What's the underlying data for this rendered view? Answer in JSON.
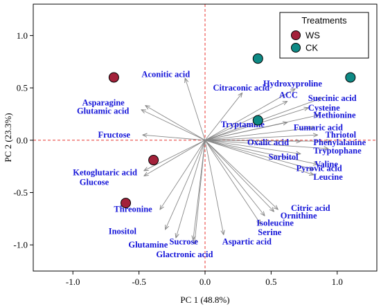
{
  "chart_data": {
    "type": "scatter",
    "subtype": "pca-biplot",
    "xlabel": "PC 1 (48.8%)",
    "ylabel": "PC 2 (23.3%)",
    "xlim": [
      -1.3,
      1.3
    ],
    "ylim": [
      -1.25,
      1.3
    ],
    "xticks": [
      -1.0,
      -0.5,
      0.0,
      0.5,
      1.0
    ],
    "xtick_labels": [
      "-1.0",
      "-0.5",
      "0.0",
      "0.5",
      "1.0"
    ],
    "yticks": [
      -1.0,
      -0.5,
      0.0,
      0.5,
      1.0
    ],
    "ytick_labels": [
      "-1.0",
      "-0.5",
      "0.0",
      "0.5",
      "1.0"
    ],
    "grid": false,
    "reference_lines": "dashed red lines at x=0 and y=0",
    "legend": {
      "title": "Treatments",
      "position": "top-right",
      "items": [
        {
          "label": "WS",
          "color": "#a3213a"
        },
        {
          "label": "CK",
          "color": "#0e8a85"
        }
      ]
    },
    "series": [
      {
        "name": "WS",
        "color": "#a3213a",
        "points": [
          {
            "x": -0.69,
            "y": 0.6
          },
          {
            "x": -0.39,
            "y": -0.19
          },
          {
            "x": -0.6,
            "y": -0.6
          }
        ]
      },
      {
        "name": "CK",
        "color": "#0e8a85",
        "points": [
          {
            "x": 0.4,
            "y": 0.78
          },
          {
            "x": 1.1,
            "y": 0.6
          },
          {
            "x": 0.4,
            "y": 0.19
          }
        ]
      }
    ],
    "loadings": [
      {
        "name": "Aconitic acid",
        "x": -0.15,
        "y": 0.59,
        "lx": -0.48,
        "ly": 0.63
      },
      {
        "name": "Asparagine",
        "x": -0.45,
        "y": 0.33,
        "lx": -0.93,
        "ly": 0.36
      },
      {
        "name": "Glutamic acid",
        "x": -0.48,
        "y": 0.29,
        "lx": -0.97,
        "ly": 0.28
      },
      {
        "name": "Fructose",
        "x": -0.47,
        "y": 0.05,
        "lx": -0.81,
        "ly": 0.05
      },
      {
        "name": "Ketoglutaric acid",
        "x": -0.46,
        "y": -0.29,
        "lx": -1.0,
        "ly": -0.31
      },
      {
        "name": "Glucose",
        "x": -0.46,
        "y": -0.34,
        "lx": -0.95,
        "ly": -0.4
      },
      {
        "name": "Threonine",
        "x": -0.34,
        "y": -0.66,
        "lx": -0.69,
        "ly": -0.66
      },
      {
        "name": "Inositol",
        "x": -0.3,
        "y": -0.85,
        "lx": -0.73,
        "ly": -0.87
      },
      {
        "name": "Glutamine",
        "x": -0.22,
        "y": -0.93,
        "lx": -0.58,
        "ly": -1.0
      },
      {
        "name": "Sucrose",
        "x": -0.09,
        "y": -0.95,
        "lx": -0.27,
        "ly": -0.97
      },
      {
        "name": "Glactronic acid",
        "x": -0.08,
        "y": -0.99,
        "lx": -0.37,
        "ly": -1.09
      },
      {
        "name": "Aspartic acid",
        "x": 0.14,
        "y": -0.9,
        "lx": 0.13,
        "ly": -0.97
      },
      {
        "name": "Serine",
        "x": 0.42,
        "y": -0.8,
        "lx": 0.4,
        "ly": -0.88
      },
      {
        "name": "Isoleucine",
        "x": 0.45,
        "y": -0.72,
        "lx": 0.39,
        "ly": -0.79
      },
      {
        "name": "Ornithine",
        "x": 0.52,
        "y": -0.68,
        "lx": 0.57,
        "ly": -0.72
      },
      {
        "name": "Citric acid",
        "x": 0.55,
        "y": -0.66,
        "lx": 0.65,
        "ly": -0.65
      },
      {
        "name": "Leucine",
        "x": 0.82,
        "y": -0.33,
        "lx": 0.82,
        "ly": -0.35
      },
      {
        "name": "Pyrovic acid",
        "x": 0.82,
        "y": -0.28,
        "lx": 0.69,
        "ly": -0.27
      },
      {
        "name": "Valine",
        "x": 0.85,
        "y": -0.23,
        "lx": 0.83,
        "ly": -0.23
      },
      {
        "name": "Sorbitol",
        "x": 0.72,
        "y": -0.13,
        "lx": 0.48,
        "ly": -0.16
      },
      {
        "name": "Tryptophane",
        "x": 0.93,
        "y": -0.08,
        "lx": 0.82,
        "ly": -0.1
      },
      {
        "name": "Oxalic acid",
        "x": 0.72,
        "y": -0.01,
        "lx": 0.32,
        "ly": -0.02
      },
      {
        "name": "Phenylalanine",
        "x": 0.95,
        "y": -0.01,
        "lx": 0.82,
        "ly": -0.02
      },
      {
        "name": "Thriotol",
        "x": 0.85,
        "y": 0.05,
        "lx": 0.91,
        "ly": 0.05
      },
      {
        "name": "Fumaric acid",
        "x": 0.82,
        "y": 0.12,
        "lx": 0.67,
        "ly": 0.12
      },
      {
        "name": "Tryptamine",
        "x": 0.62,
        "y": 0.17,
        "lx": 0.12,
        "ly": 0.15
      },
      {
        "name": "Methionine",
        "x": 0.86,
        "y": 0.24,
        "lx": 0.82,
        "ly": 0.24
      },
      {
        "name": "Cysteine",
        "x": 0.78,
        "y": 0.31,
        "lx": 0.78,
        "ly": 0.31
      },
      {
        "name": "Succinic acid",
        "x": 0.88,
        "y": 0.4,
        "lx": 0.78,
        "ly": 0.4
      },
      {
        "name": "ACC",
        "x": 0.62,
        "y": 0.37,
        "lx": 0.56,
        "ly": 0.43
      },
      {
        "name": "Hydroxyproline",
        "x": 0.68,
        "y": 0.49,
        "lx": 0.44,
        "ly": 0.54
      },
      {
        "name": "Citraconic acid",
        "x": 0.28,
        "y": 0.45,
        "lx": 0.06,
        "ly": 0.5
      }
    ]
  }
}
